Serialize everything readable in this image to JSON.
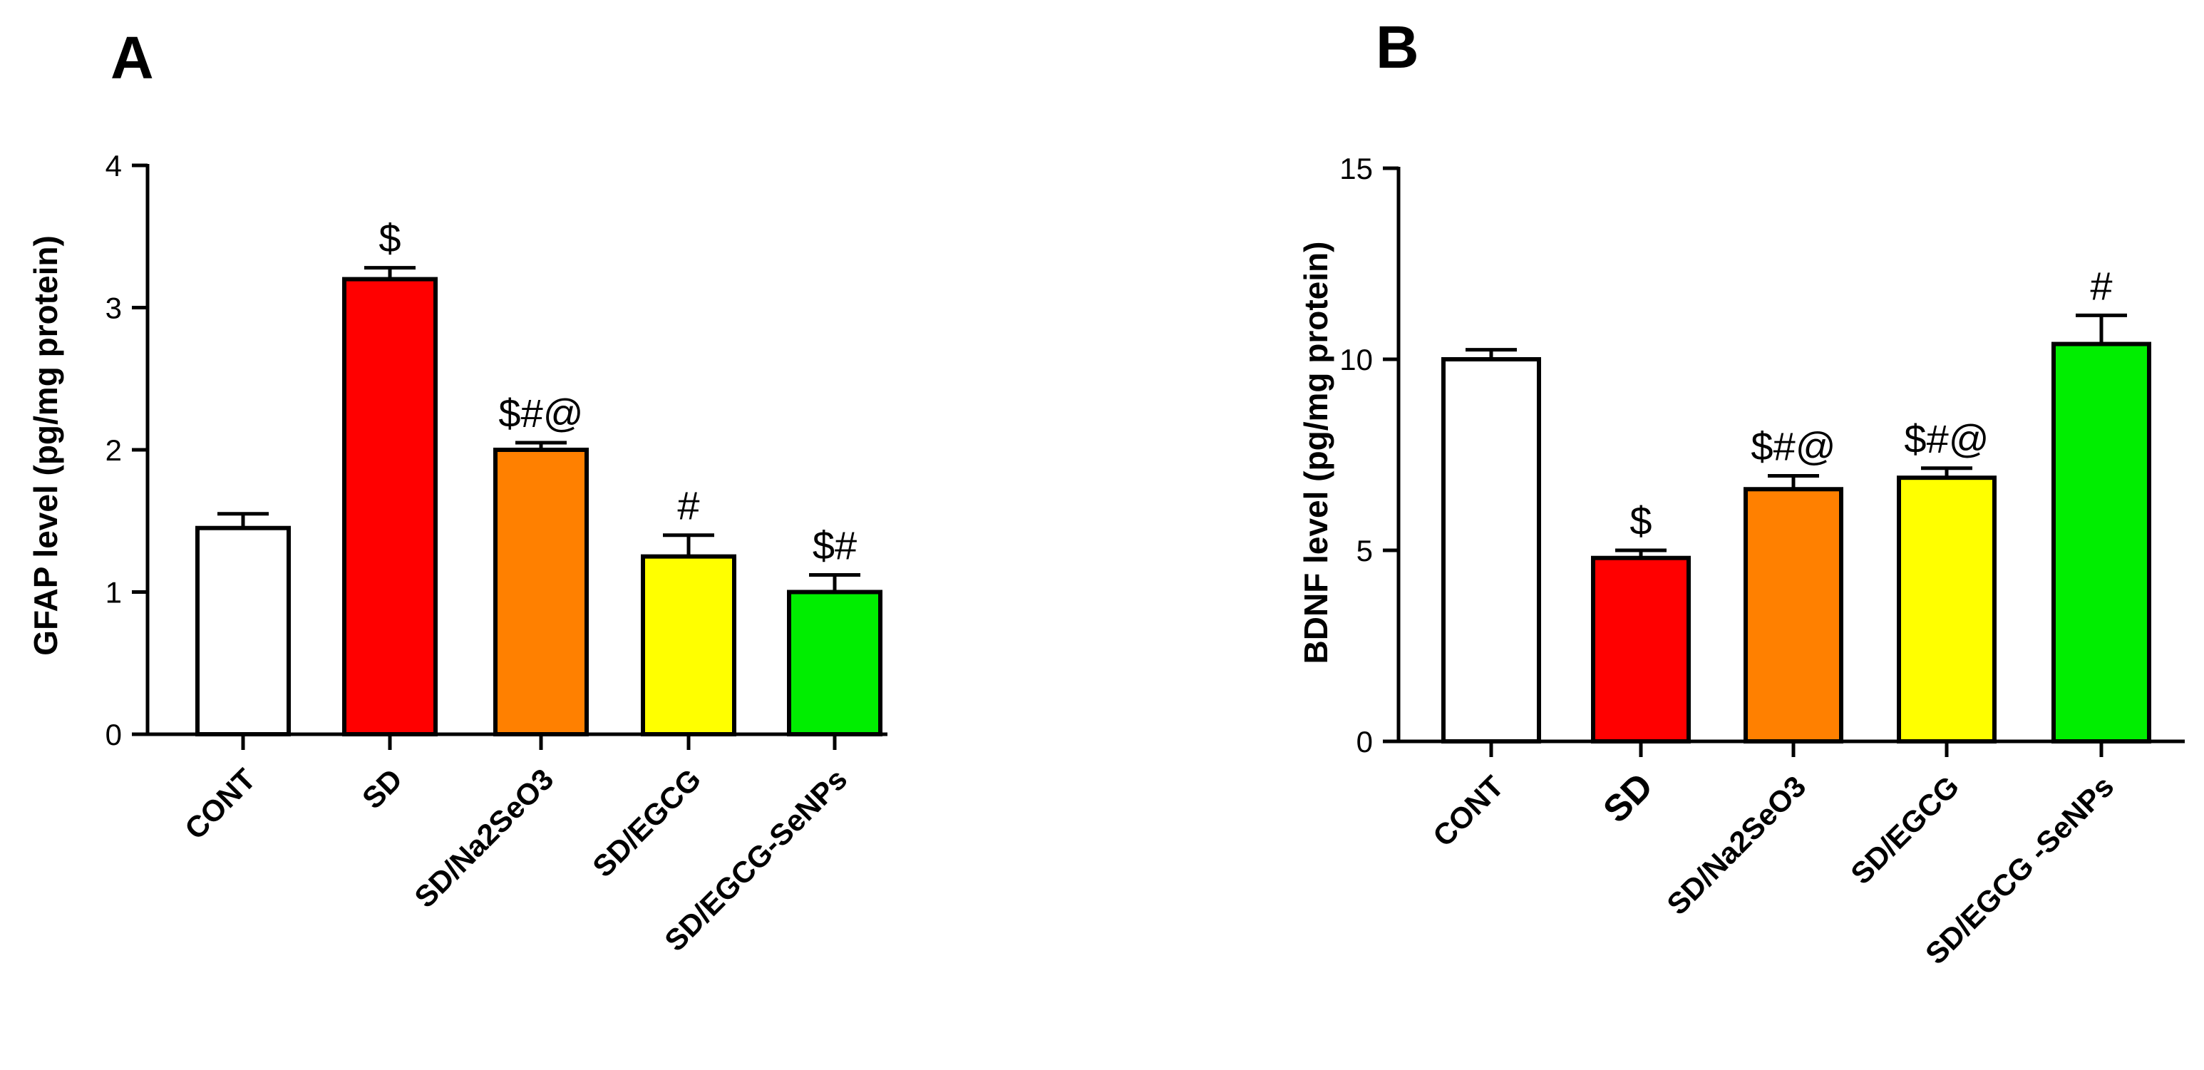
{
  "chart_data": [
    {
      "type": "bar",
      "panel": "A",
      "title": "",
      "xlabel": "",
      "ylabel": "GFAP level (pg/mg protein)",
      "ylim": [
        0,
        4
      ],
      "yticks": [
        "0",
        "1",
        "2",
        "3",
        "4"
      ],
      "categories": [
        "CONT",
        "SD",
        "SD/Na2SeO3",
        "SD/EGCG",
        "SD/EGCG-SeNPs"
      ],
      "values": [
        1.45,
        3.2,
        2.0,
        1.25,
        1.0
      ],
      "errors": [
        0.1,
        0.08,
        0.05,
        0.15,
        0.12
      ],
      "annotations": [
        "",
        "$",
        "$#@",
        "#",
        "$#"
      ],
      "colors": [
        "#ffffff",
        "#ff0000",
        "#ff8000",
        "#ffff00",
        "#00ee00"
      ],
      "grid": false
    },
    {
      "type": "bar",
      "panel": "B",
      "title": "",
      "xlabel": "",
      "ylabel": "BDNF level (pg/mg protein)",
      "ylim": [
        0,
        15
      ],
      "yticks": [
        "0",
        "5",
        "10",
        "15"
      ],
      "categories": [
        "CONT",
        "SD",
        "SD/Na2SeO3",
        "SD/EGCG",
        "SD/EGCG -SeNPs"
      ],
      "values": [
        10.0,
        4.8,
        6.6,
        6.9,
        10.4
      ],
      "errors": [
        0.25,
        0.2,
        0.35,
        0.25,
        0.75
      ],
      "annotations": [
        "",
        "$",
        "$#@",
        "$#@",
        "#"
      ],
      "colors": [
        "#ffffff",
        "#ff0000",
        "#ff8000",
        "#ffff00",
        "#00ee00"
      ],
      "grid": false
    }
  ]
}
